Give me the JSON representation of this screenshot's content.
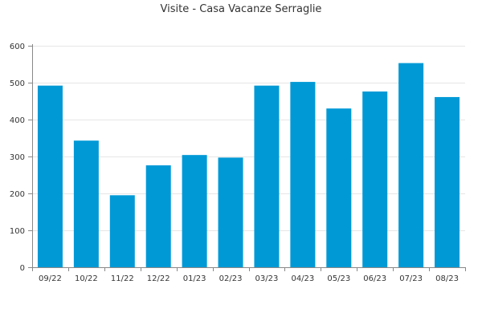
{
  "chart_data": {
    "type": "bar",
    "title": "Visite - Casa Vacanze Serraglie",
    "xlabel": "",
    "ylabel": "",
    "categories": [
      "09/22",
      "10/22",
      "11/22",
      "12/22",
      "01/23",
      "02/23",
      "03/23",
      "04/23",
      "05/23",
      "06/23",
      "07/23",
      "08/23"
    ],
    "values": [
      492,
      343,
      195,
      276,
      304,
      297,
      492,
      502,
      430,
      476,
      553,
      461
    ],
    "ylim": [
      0,
      600
    ],
    "yticks": [
      0,
      100,
      200,
      300,
      400,
      500,
      600
    ],
    "grid": true,
    "bar_color": "#0099d6",
    "grid_color": "#e6e6e6",
    "axis_color": "#888888"
  }
}
